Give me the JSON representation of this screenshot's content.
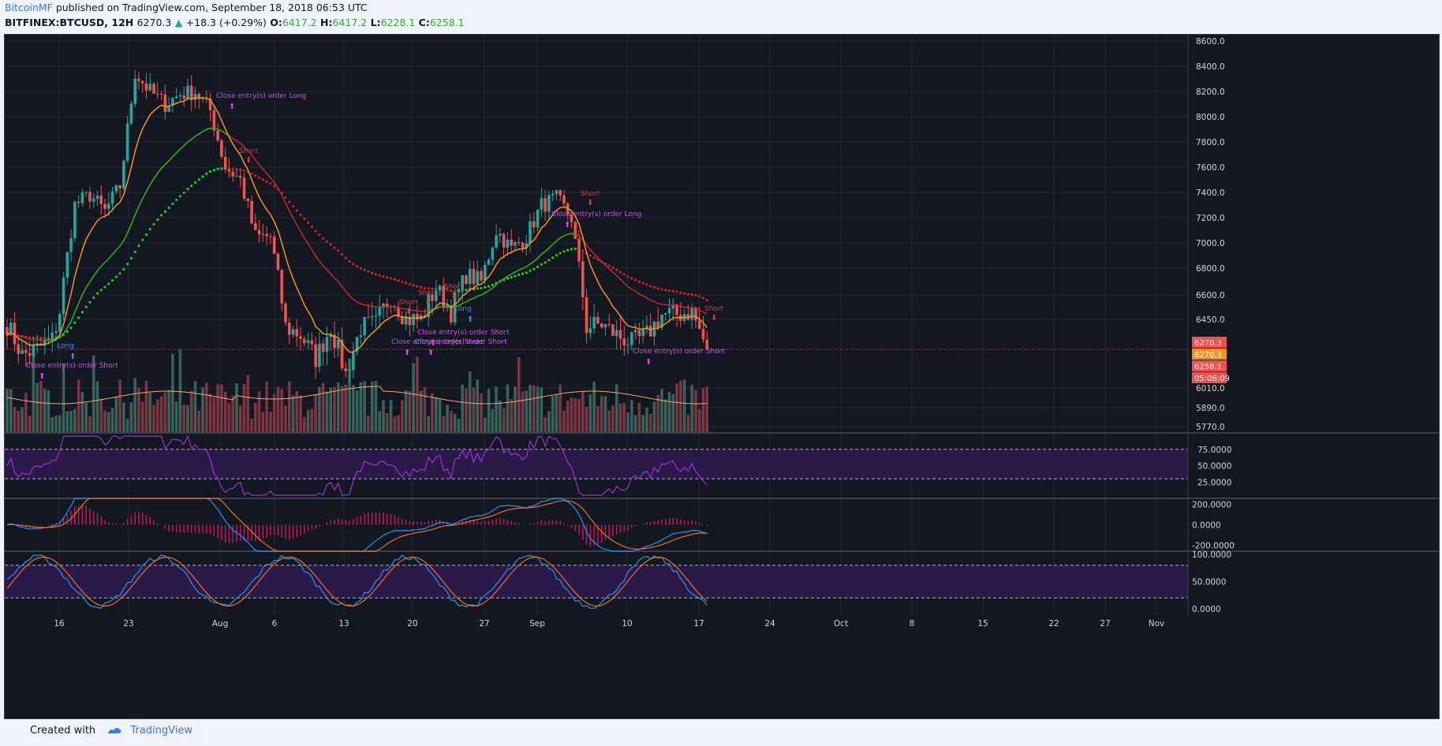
{
  "header": {
    "author": "BitcoinMF",
    "published_text": "published on TradingView.com, September 18, 2018 06:53 UTC",
    "symbol_interval": "BITFINEX:BTCUSD, 12H",
    "last": "6270.3",
    "change": "+18.3 (+0.29%)",
    "o_label": "O:",
    "open": "6417.2",
    "h_label": "H:",
    "high": "6417.2",
    "l_label": "L:",
    "low": "6228.1",
    "c_label": "C:",
    "close": "6258.1"
  },
  "footer": {
    "created_with": "Created with",
    "brand": "TradingView"
  },
  "price_badges": {
    "last": "6270.3",
    "mid": "6270.3",
    "close": "6258.1",
    "countdown": "05:06:09"
  },
  "signals": [
    {
      "text": "Close entry(s) order Long"
    },
    {
      "text": "Short"
    },
    {
      "text": "Long"
    },
    {
      "text": "Close entry(s) order Short"
    },
    {
      "text": "Short"
    },
    {
      "text": "Close entry(s) order Short"
    },
    {
      "text": "Short"
    },
    {
      "text": "Close entry(s) order Short"
    },
    {
      "text": "Short"
    },
    {
      "text": "Close entry(s) order Short"
    },
    {
      "text": "Long"
    },
    {
      "text": "Short"
    },
    {
      "text": "Close entry(s) order Long"
    },
    {
      "text": "Close entry(s) order Short"
    },
    {
      "text": "Short"
    }
  ],
  "colors": {
    "bg": "#131722",
    "grid": "#232733",
    "up": "#26a69a",
    "down": "#ef5350",
    "ema_fast": "#f7931a",
    "sma_green": "#1fb31f",
    "dots_green": "#1fcc1f",
    "dots_red": "#d32020",
    "ema_red": "#c62828",
    "rsi": "#a030d0",
    "band": "#2a1a4a",
    "macd": "#2196f3",
    "signal": "#f36e24",
    "hist": "#c2185b",
    "axis_text": "#d1d4dc",
    "signal_text": "#e040fb",
    "short_text": "#e53935",
    "long_text": "#2196f3",
    "badge_red": "#ef5350",
    "badge_orange": "#f7931a"
  },
  "chart_data": {
    "type": "candlestick",
    "symbol": "BITFINEX:BTCUSD",
    "interval": "12H",
    "x_ticks": [
      "16",
      "23",
      "Aug",
      "6",
      "13",
      "20",
      "27",
      "Sep",
      "10",
      "17",
      "24",
      "Oct",
      "8",
      "15",
      "22",
      "27",
      "Nov"
    ],
    "y_ticks": [
      "8600.0",
      "8400.0",
      "8200.0",
      "8000.0",
      "7800.0",
      "7600.0",
      "7400.0",
      "7200.0",
      "7000.0",
      "6800.0",
      "6600.0",
      "6450.0",
      "6010.0",
      "5890.0",
      "5770.0"
    ],
    "ylim": [
      5770,
      8600
    ],
    "close_anchors": [
      [
        0,
        6420
      ],
      [
        4,
        6220
      ],
      [
        8,
        6260
      ],
      [
        12,
        6320
      ],
      [
        14,
        6500
      ],
      [
        18,
        7300
      ],
      [
        22,
        7380
      ],
      [
        26,
        7250
      ],
      [
        30,
        7450
      ],
      [
        34,
        8350
      ],
      [
        38,
        8200
      ],
      [
        42,
        8100
      ],
      [
        46,
        8180
      ],
      [
        50,
        8200
      ],
      [
        54,
        8050
      ],
      [
        58,
        7600
      ],
      [
        62,
        7500
      ],
      [
        66,
        7050
      ],
      [
        70,
        7050
      ],
      [
        74,
        6400
      ],
      [
        78,
        6350
      ],
      [
        82,
        6200
      ],
      [
        86,
        6400
      ],
      [
        90,
        6100
      ],
      [
        94,
        6400
      ],
      [
        98,
        6420
      ],
      [
        102,
        6600
      ],
      [
        106,
        6450
      ],
      [
        110,
        6450
      ],
      [
        114,
        6650
      ],
      [
        118,
        6500
      ],
      [
        122,
        6750
      ],
      [
        126,
        6700
      ],
      [
        130,
        7100
      ],
      [
        134,
        6950
      ],
      [
        138,
        7050
      ],
      [
        142,
        7300
      ],
      [
        146,
        7350
      ],
      [
        150,
        7200
      ],
      [
        154,
        6400
      ],
      [
        158,
        6420
      ],
      [
        162,
        6350
      ],
      [
        166,
        6300
      ],
      [
        170,
        6350
      ],
      [
        174,
        6480
      ],
      [
        178,
        6480
      ],
      [
        182,
        6500
      ],
      [
        186,
        6260
      ]
    ],
    "indicators": {
      "rsi": {
        "levels": [
          "75.0000",
          "50.0000",
          "25.0000"
        ],
        "upper": 75,
        "lower": 30
      },
      "macd": {
        "levels": [
          "200.0000",
          "0.0000",
          "-200.0000"
        ]
      },
      "stoch": {
        "levels": [
          "100.0000",
          "50.0000",
          "0.0000"
        ],
        "upper": 80,
        "lower": 20
      }
    }
  }
}
